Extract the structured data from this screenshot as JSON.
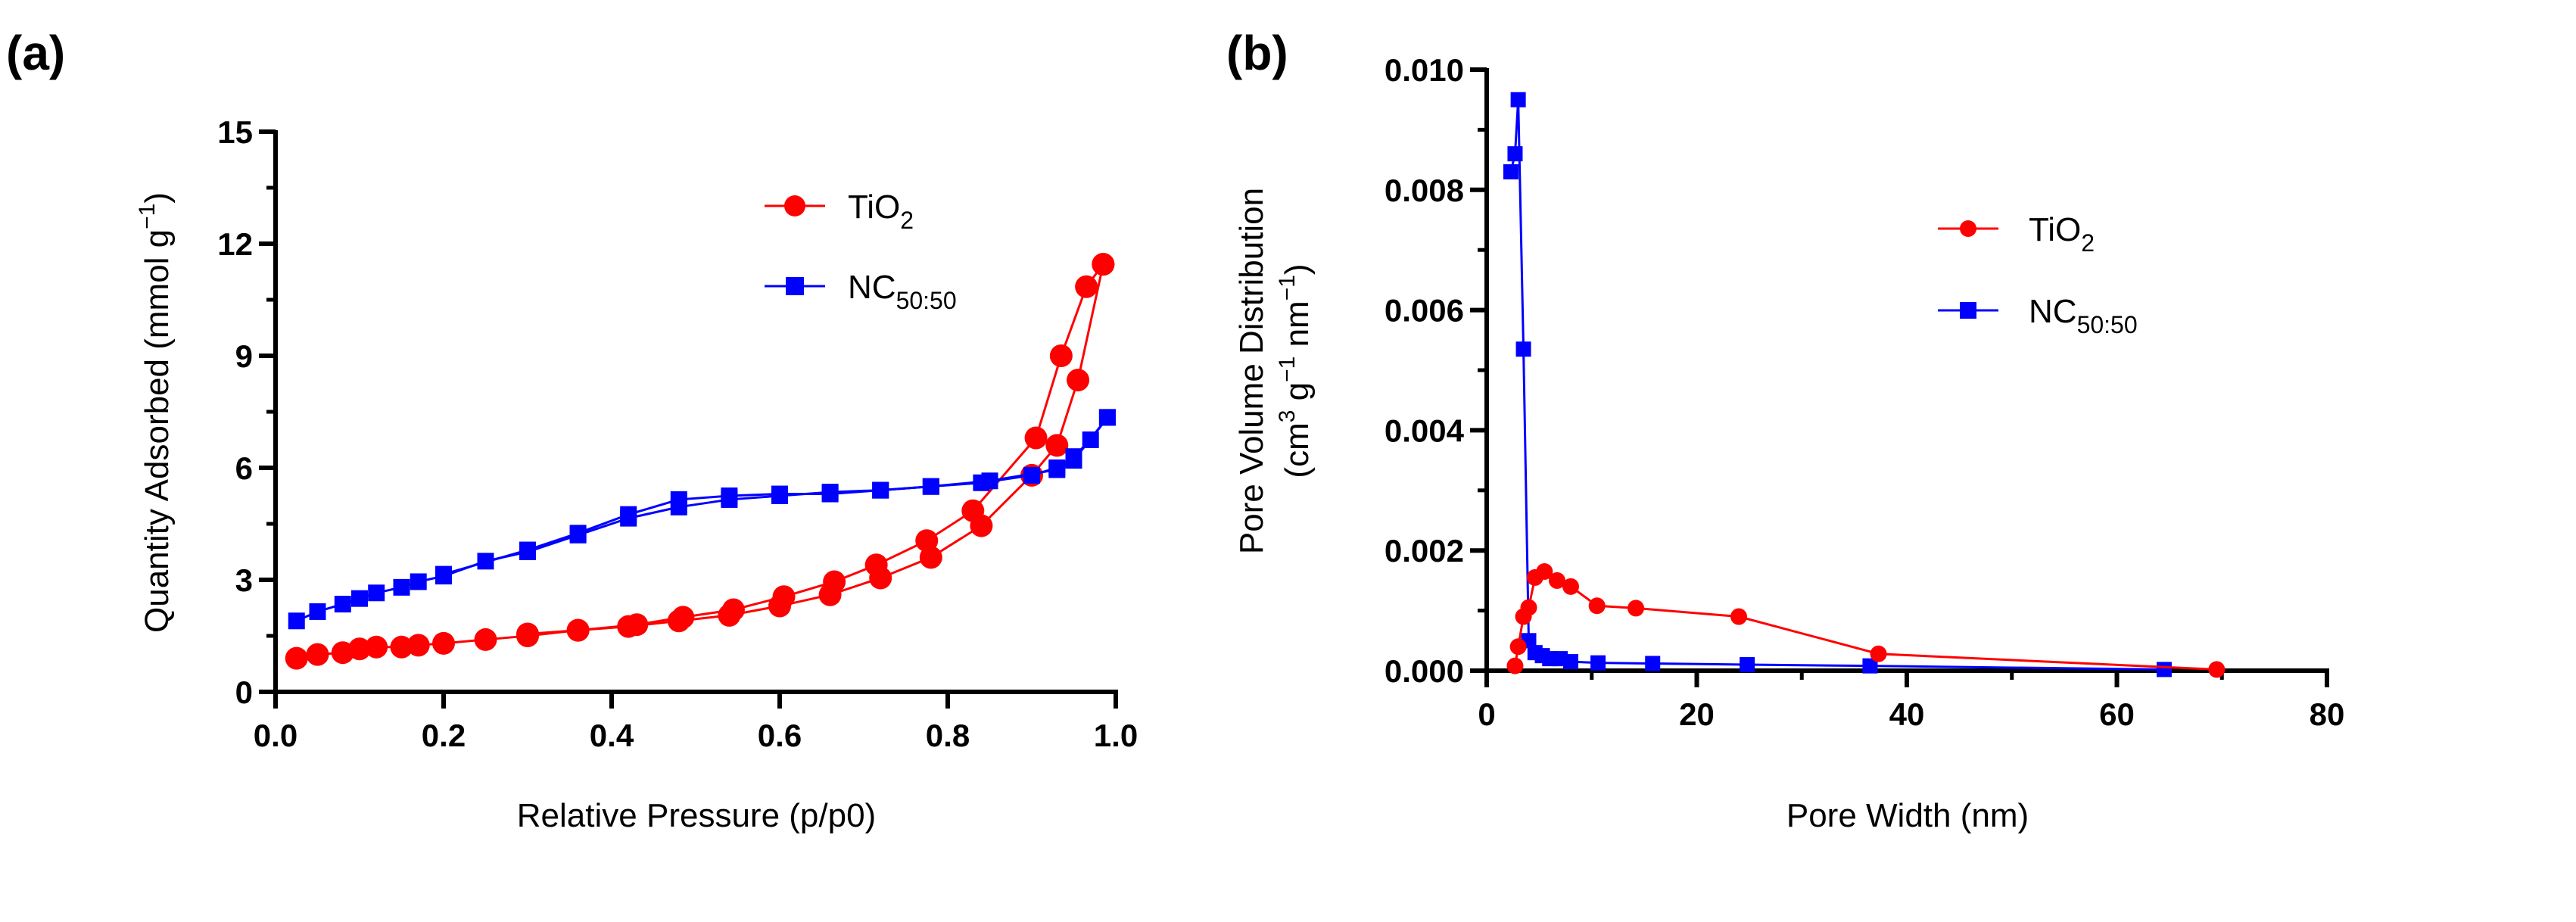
{
  "chart_data": [
    {
      "panel_label": "(a)",
      "type": "line",
      "xlabel": "Relative Pressure (p/p0)",
      "ylabel": "Quantity Adsorbed (mmol g",
      "ylabel_sup": "−1",
      "ylabel_end": ")",
      "xlim": [
        0,
        1.0
      ],
      "ylim": [
        0,
        15
      ],
      "xticks": [
        "0.0",
        "0.2",
        "0.4",
        "0.6",
        "0.8",
        "1.0"
      ],
      "yticks": [
        "0",
        "3",
        "6",
        "9",
        "12",
        "15"
      ],
      "grid": false,
      "legend_placement": "top-right",
      "series": [
        {
          "name": "TiO",
          "name_sub": "2",
          "color": "#ff0000",
          "marker": "circle",
          "adsorption": {
            "x": [
              0.025,
              0.05,
              0.08,
              0.1,
              0.12,
              0.15,
              0.17,
              0.2,
              0.25,
              0.3,
              0.36,
              0.42,
              0.48,
              0.54,
              0.6,
              0.66,
              0.72,
              0.78,
              0.84,
              0.9,
              0.93,
              0.955,
              0.985
            ],
            "y": [
              0.9,
              1.0,
              1.05,
              1.15,
              1.2,
              1.2,
              1.25,
              1.3,
              1.4,
              1.5,
              1.65,
              1.75,
              1.9,
              2.05,
              2.3,
              2.6,
              3.05,
              3.6,
              4.45,
              5.8,
              6.6,
              8.35,
              11.45
            ]
          },
          "desorption": {
            "x": [
              0.985,
              0.965,
              0.935,
              0.905,
              0.83,
              0.775,
              0.715,
              0.665,
              0.605,
              0.545,
              0.485,
              0.43,
              0.36,
              0.3
            ],
            "y": [
              11.45,
              10.85,
              9.0,
              6.8,
              4.85,
              4.05,
              3.4,
              2.95,
              2.55,
              2.2,
              2.0,
              1.8,
              1.65,
              1.55
            ]
          }
        },
        {
          "name": "NC",
          "name_sub": "50:50",
          "color": "#0000ff",
          "marker": "square",
          "adsorption": {
            "x": [
              0.025,
              0.05,
              0.08,
              0.1,
              0.12,
              0.15,
              0.17,
              0.2,
              0.25,
              0.3,
              0.36,
              0.42,
              0.48,
              0.54,
              0.6,
              0.66,
              0.72,
              0.78,
              0.84,
              0.9,
              0.93,
              0.95,
              0.97,
              0.99
            ],
            "y": [
              1.9,
              2.15,
              2.35,
              2.5,
              2.65,
              2.8,
              2.95,
              3.1,
              3.5,
              3.75,
              4.2,
              4.65,
              4.95,
              5.15,
              5.25,
              5.35,
              5.4,
              5.5,
              5.6,
              5.8,
              6.0,
              6.3,
              6.75,
              7.35
            ]
          },
          "desorption": {
            "x": [
              0.99,
              0.95,
              0.93,
              0.85,
              0.78,
              0.72,
              0.66,
              0.6,
              0.54,
              0.48,
              0.42,
              0.36,
              0.3,
              0.2
            ],
            "y": [
              7.35,
              6.2,
              5.95,
              5.65,
              5.5,
              5.4,
              5.3,
              5.3,
              5.25,
              5.15,
              4.75,
              4.25,
              3.8,
              3.15
            ]
          }
        }
      ]
    },
    {
      "panel_label": "(b)",
      "type": "line",
      "xlabel": "Pore Width (nm)",
      "ylabel_line1": "Pore Volume Distribution",
      "ylabel_line2": "(cm",
      "ylabel_sup1": "3",
      "ylabel_mid": " g",
      "ylabel_sup2": "−1",
      "ylabel_mid2": " nm",
      "ylabel_sup3": "−1",
      "ylabel_end": ")",
      "xlim": [
        0,
        80
      ],
      "ylim": [
        0,
        0.01
      ],
      "xticks": [
        "0",
        "20",
        "40",
        "60",
        "80"
      ],
      "yticks": [
        "0.000",
        "0.002",
        "0.004",
        "0.006",
        "0.008",
        "0.010"
      ],
      "grid": false,
      "legend_placement": "right",
      "series": [
        {
          "name": "TiO",
          "name_sub": "2",
          "color": "#ff0000",
          "marker": "circle",
          "x": [
            2.7,
            3.0,
            3.5,
            4.0,
            4.6,
            5.5,
            6.7,
            8.0,
            10.5,
            14.2,
            24.0,
            37.3,
            69.5
          ],
          "y": [
            8e-05,
            0.0004,
            0.0009,
            0.00105,
            0.00155,
            0.00165,
            0.0015,
            0.0014,
            0.00108,
            0.00104,
            0.0009,
            0.00028,
            2e-05
          ]
        },
        {
          "name": "NC",
          "name_sub": "50:50",
          "color": "#0000ff",
          "marker": "square",
          "x": [
            2.3,
            2.7,
            3.0,
            3.5,
            4.0,
            4.6,
            5.3,
            6.0,
            7.0,
            8.0,
            10.6,
            15.8,
            24.8,
            36.5,
            64.5
          ],
          "y": [
            0.0083,
            0.0086,
            0.0095,
            0.00535,
            0.0005,
            0.0003,
            0.00025,
            0.0002,
            0.0002,
            0.00015,
            0.00013,
            0.00012,
            0.0001,
            8e-05,
            2e-05
          ]
        }
      ]
    }
  ]
}
